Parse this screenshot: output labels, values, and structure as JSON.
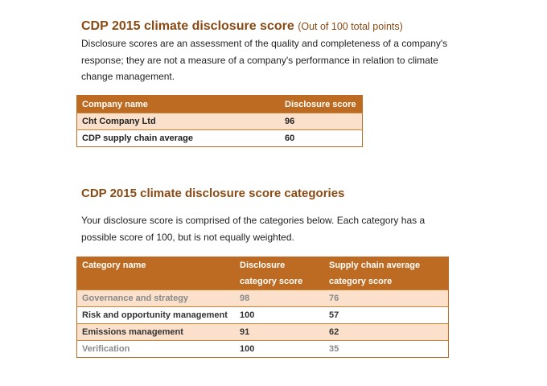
{
  "section1": {
    "title": "CDP 2015 climate disclosure score",
    "title_sub": "(Out of 100 total points)",
    "intro": "Disclosure scores are an assessment of the quality and completeness of a company's response; they are not a measure of a company's performance in relation to climate change management.",
    "table": {
      "headers": [
        "Company name",
        "Disclosure score"
      ],
      "rows": [
        {
          "name": "Cht Company Ltd",
          "score": "96"
        },
        {
          "name": "CDP supply chain average",
          "score": "60"
        }
      ]
    }
  },
  "section2": {
    "title": "CDP 2015 climate disclosure score categories",
    "intro": "Your disclosure score is comprised of the categories below. Each category has a possible score of 100, but is not equally weighted.",
    "table": {
      "headers": {
        "category": "Category name",
        "disclosure_l1": "Disclosure",
        "disclosure_l2": "category score",
        "supply_l1": "Supply chain average",
        "supply_l2": "category score"
      },
      "rows": [
        {
          "name": "Governance and strategy",
          "score": "98",
          "avg": "76"
        },
        {
          "name": "Risk and opportunity management",
          "score": "100",
          "avg": "57"
        },
        {
          "name": "Emissions management",
          "score": "91",
          "avg": "62"
        },
        {
          "name": "Verification",
          "score": "100",
          "avg": "35"
        }
      ]
    }
  },
  "colors": {
    "header_bg": "#bd6b22",
    "row_shade": "#fbe1cb",
    "title": "#8a4a14"
  }
}
